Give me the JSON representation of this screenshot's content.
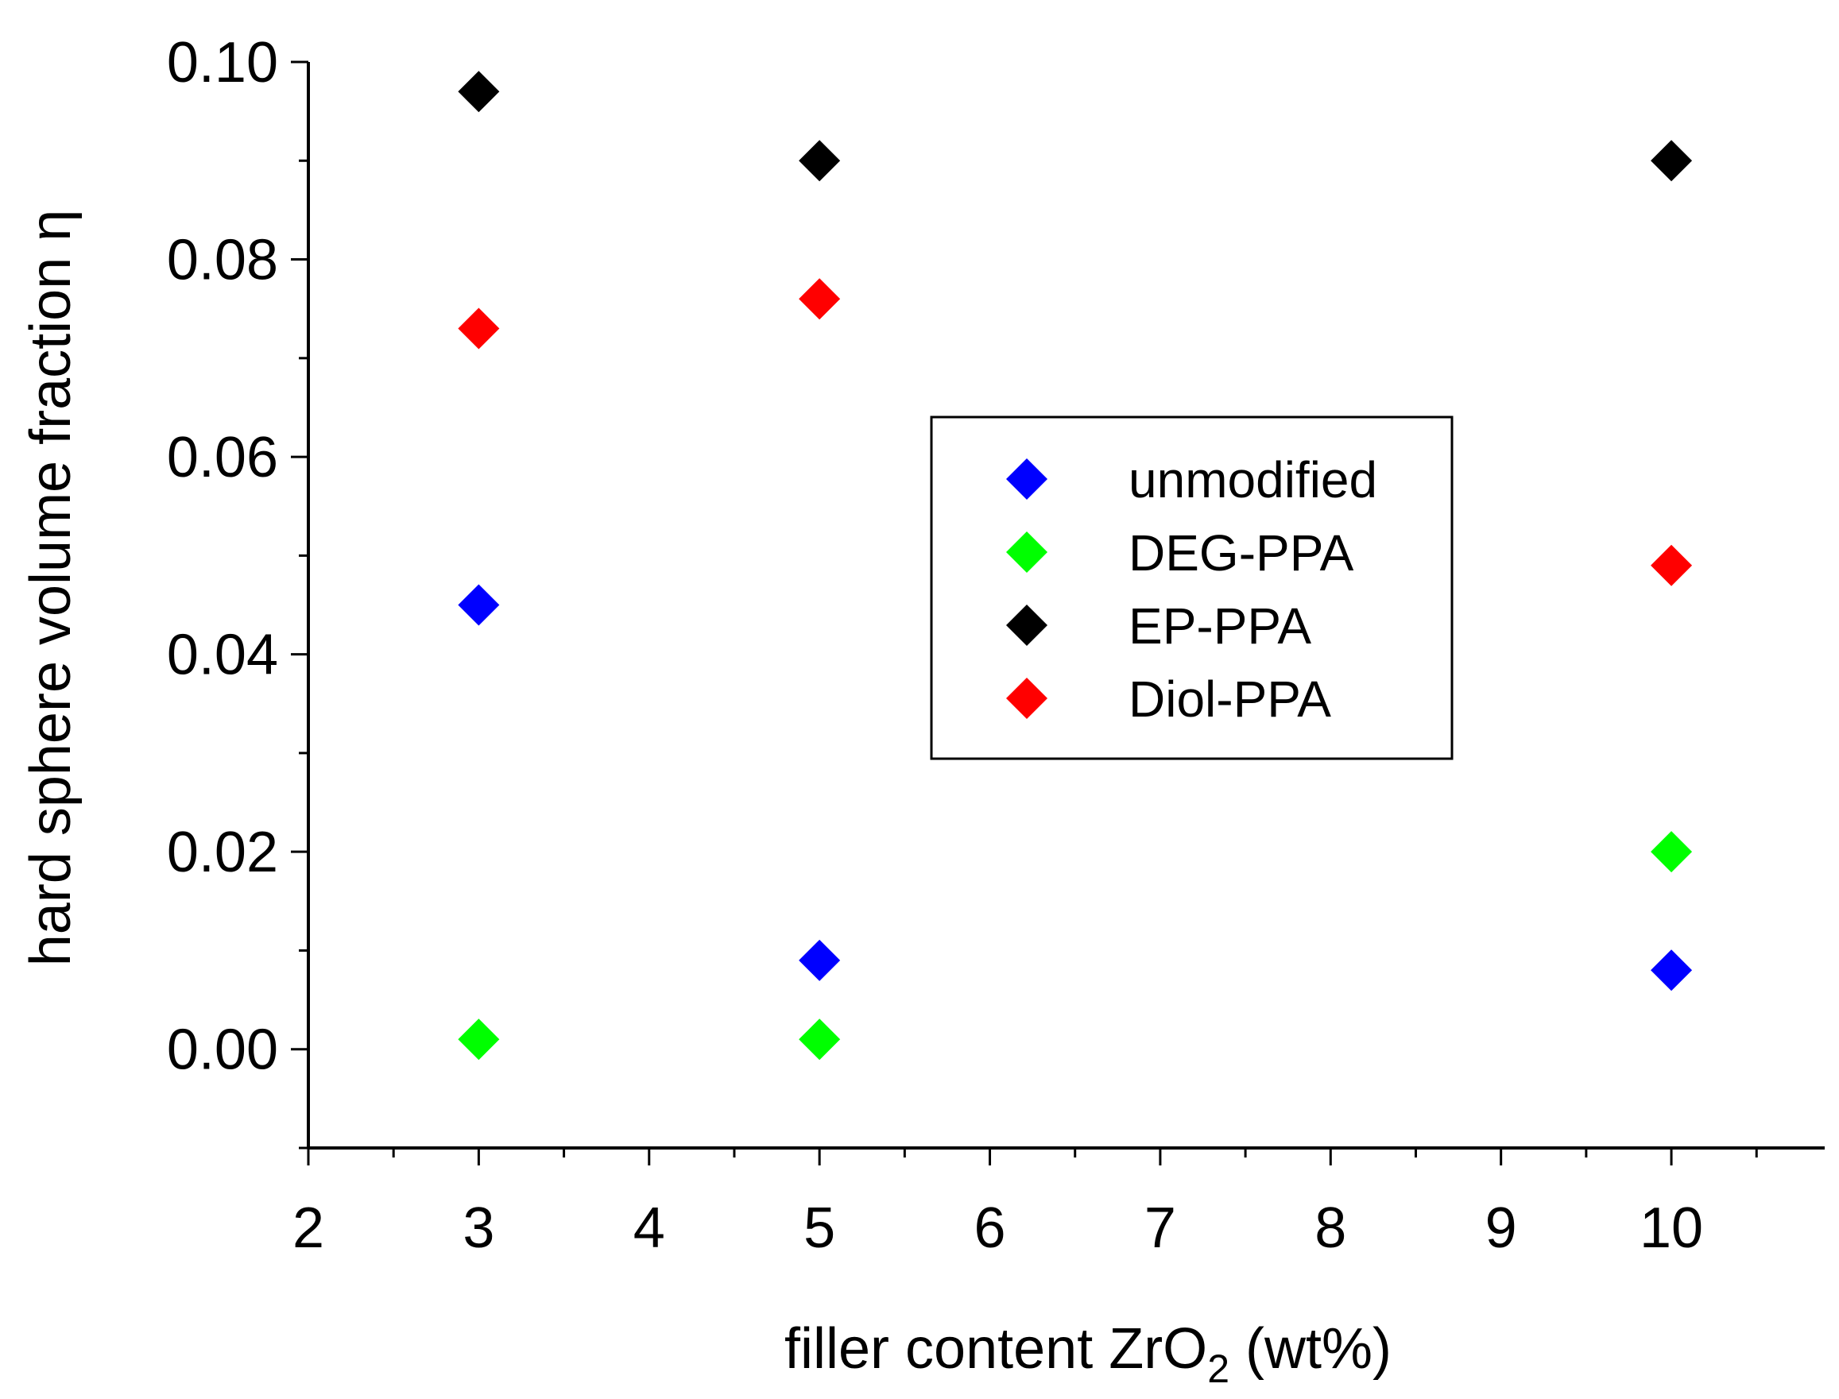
{
  "chart_data": {
    "type": "scatter",
    "title": "",
    "xlabel_parts": {
      "pre": "filler content ZrO",
      "sub": "2",
      "post": " (wt%)"
    },
    "ylabel": "hard sphere volume fraction η",
    "xlim": [
      2,
      10.9
    ],
    "ylim": [
      -0.01,
      0.1
    ],
    "x_ticks": [
      2,
      3,
      4,
      5,
      6,
      7,
      8,
      9,
      10
    ],
    "x_tick_labels": [
      "2",
      "3",
      "4",
      "5",
      "6",
      "7",
      "8",
      "9",
      "10"
    ],
    "y_ticks": [
      0.0,
      0.02,
      0.04,
      0.06,
      0.08,
      0.1
    ],
    "y_tick_labels": [
      "0.00",
      "0.02",
      "0.04",
      "0.06",
      "0.08",
      "0.10"
    ],
    "legend_position": "center-right",
    "series": [
      {
        "name": "unmodified",
        "color": "#0000ff",
        "x": [
          3,
          5,
          10
        ],
        "y": [
          0.045,
          0.009,
          0.008
        ]
      },
      {
        "name": "DEG-PPA",
        "color": "#00ff00",
        "x": [
          3,
          5,
          10
        ],
        "y": [
          0.001,
          0.001,
          0.02
        ]
      },
      {
        "name": "EP-PPA",
        "color": "#000000",
        "x": [
          3,
          5,
          10
        ],
        "y": [
          0.097,
          0.09,
          0.09
        ]
      },
      {
        "name": "Diol-PPA",
        "color": "#ff0000",
        "x": [
          3,
          5,
          10
        ],
        "y": [
          0.073,
          0.076,
          0.049
        ]
      }
    ]
  }
}
